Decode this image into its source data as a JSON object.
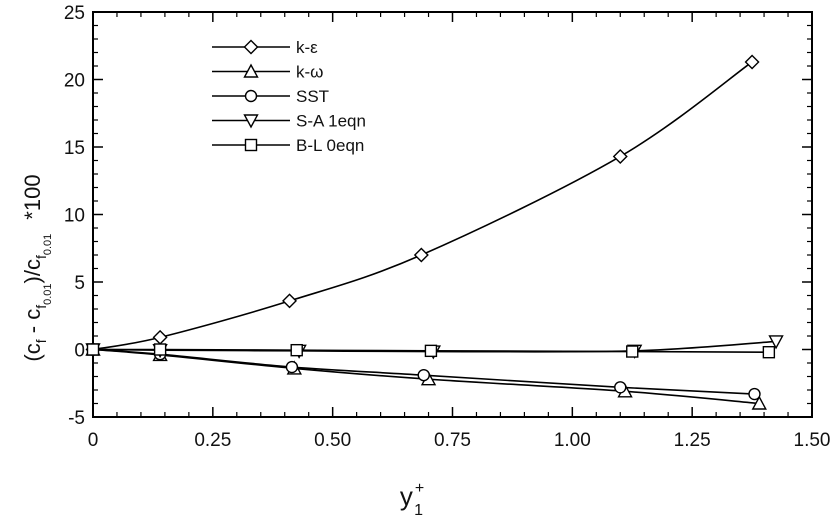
{
  "chart_data": {
    "type": "line",
    "title": "",
    "xlim": [
      0,
      1.5
    ],
    "ylim": [
      -5,
      25
    ],
    "x_ticks": [
      "0",
      "0.25",
      "0.50",
      "0.75",
      "1.00",
      "1.25",
      "1.50"
    ],
    "y_ticks": [
      "-5",
      "0",
      "5",
      "10",
      "15",
      "20",
      "25"
    ],
    "xlabel": {
      "main": "y",
      "sup": "+",
      "sub": "1"
    },
    "ylabel": {
      "p1": "(c",
      "s1": "f",
      "p2": " - c",
      "s2": "f",
      "s2b": "0.01",
      "p3": ")/c",
      "s3": "f",
      "s3b": "0.01",
      "p4": "*100"
    },
    "grid": false,
    "legend_position": "top-left",
    "colors": {
      "line": "#000000",
      "marker_fill": "#ffffff"
    },
    "series": [
      {
        "name": "k-ε",
        "marker": "diamond",
        "x": [
          0,
          0.14,
          0.41,
          0.685,
          1.1,
          1.375
        ],
        "y": [
          0,
          0.9,
          3.6,
          7.0,
          14.3,
          21.3
        ]
      },
      {
        "name": "k-ω",
        "marker": "triangle-up",
        "x": [
          0,
          0.14,
          0.42,
          0.7,
          1.11,
          1.39
        ],
        "y": [
          0,
          -0.4,
          -1.4,
          -2.2,
          -3.1,
          -4.0
        ]
      },
      {
        "name": "SST",
        "marker": "circle",
        "x": [
          0,
          0.14,
          0.415,
          0.69,
          1.1,
          1.38
        ],
        "y": [
          0,
          -0.35,
          -1.3,
          -1.9,
          -2.8,
          -3.3
        ]
      },
      {
        "name": "S-A 1eqn",
        "marker": "triangle-down",
        "x": [
          0,
          0.14,
          0.43,
          0.71,
          1.13,
          1.425
        ],
        "y": [
          0,
          -0.05,
          -0.1,
          -0.15,
          -0.1,
          0.6
        ]
      },
      {
        "name": "B-L 0eqn",
        "marker": "square",
        "x": [
          0,
          0.14,
          0.425,
          0.705,
          1.125,
          1.41
        ],
        "y": [
          0,
          0.0,
          -0.05,
          -0.1,
          -0.15,
          -0.2
        ]
      }
    ]
  }
}
